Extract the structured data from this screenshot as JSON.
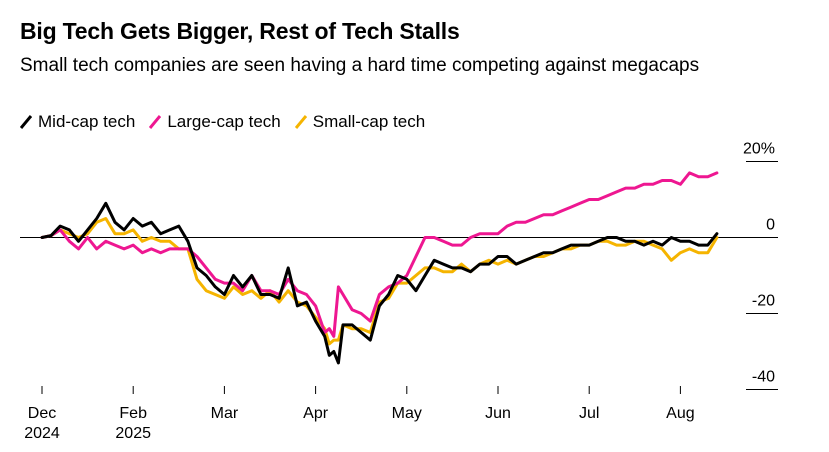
{
  "title": "Big Tech Gets Bigger, Rest of Tech Stalls",
  "subtitle": "Small tech companies are seen having a hard time competing against megacaps",
  "colors": {
    "mid": "#000000",
    "large": "#ee1791",
    "small": "#f5b400"
  },
  "chart_data": {
    "type": "line",
    "ylim": [
      -40,
      20
    ],
    "y_ticks": [
      20,
      0,
      -20,
      -40
    ],
    "y_tick_labels": [
      "20%",
      "0",
      "-20",
      "-40"
    ],
    "x_ticks": [
      {
        "month": 0,
        "lines": [
          "Dec",
          "2024"
        ]
      },
      {
        "month": 1,
        "lines": [
          "Feb",
          "2025"
        ]
      },
      {
        "month": 2,
        "lines": [
          "Mar"
        ]
      },
      {
        "month": 3,
        "lines": [
          "Apr"
        ]
      },
      {
        "month": 4,
        "lines": [
          "May"
        ]
      },
      {
        "month": 5,
        "lines": [
          "Jun"
        ]
      },
      {
        "month": 6,
        "lines": [
          "Jul"
        ]
      },
      {
        "month": 7,
        "lines": [
          "Aug"
        ]
      }
    ],
    "x": [
      0,
      0.1,
      0.2,
      0.3,
      0.4,
      0.5,
      0.6,
      0.7,
      0.8,
      0.9,
      1.0,
      1.1,
      1.2,
      1.3,
      1.4,
      1.5,
      1.6,
      1.7,
      1.8,
      1.9,
      2.0,
      2.1,
      2.2,
      2.3,
      2.4,
      2.5,
      2.6,
      2.7,
      2.8,
      2.9,
      3.0,
      3.1,
      3.15,
      3.2,
      3.25,
      3.3,
      3.4,
      3.5,
      3.6,
      3.7,
      3.8,
      3.9,
      4.0,
      4.1,
      4.2,
      4.3,
      4.4,
      4.5,
      4.6,
      4.7,
      4.8,
      4.9,
      5.0,
      5.1,
      5.2,
      5.3,
      5.4,
      5.5,
      5.6,
      5.7,
      5.8,
      5.9,
      6.0,
      6.1,
      6.2,
      6.3,
      6.4,
      6.5,
      6.6,
      6.7,
      6.8,
      6.9,
      7.0,
      7.1,
      7.2,
      7.3,
      7.4
    ],
    "series": [
      {
        "name": "Mid-cap tech",
        "color_key": "mid",
        "values": [
          0,
          0.5,
          3,
          2,
          -1,
          2,
          5,
          9,
          4,
          2,
          5,
          3,
          4,
          1,
          2,
          3,
          -1,
          -8,
          -10,
          -13,
          -15,
          -10,
          -13,
          -10,
          -15,
          -15,
          -16,
          -8,
          -18,
          -17,
          -22,
          -26,
          -31,
          -30,
          -33,
          -23,
          -23,
          -25,
          -27,
          -18,
          -15,
          -10,
          -11,
          -14,
          -10,
          -6,
          -7,
          -8,
          -8,
          -9,
          -7,
          -7,
          -5,
          -5,
          -7,
          -6,
          -5,
          -4,
          -4,
          -3,
          -2,
          -2,
          -2,
          -1,
          0,
          0,
          -1,
          -1,
          -2,
          -1,
          -2,
          0,
          -1,
          -1,
          -2,
          -2,
          1
        ]
      },
      {
        "name": "Large-cap tech",
        "color_key": "large",
        "values": [
          0,
          0.5,
          2,
          -1,
          -3,
          0,
          -3,
          -1,
          -2,
          -3,
          -2,
          -4,
          -3,
          -4,
          -3,
          -3,
          -3,
          -5,
          -8,
          -11,
          -12,
          -12,
          -14,
          -10,
          -14,
          -14,
          -15,
          -11,
          -14,
          -15,
          -18,
          -25,
          -24,
          -26,
          -13,
          -15,
          -19,
          -20,
          -22,
          -15,
          -13,
          -12,
          -10,
          -5,
          0,
          0,
          -1,
          -2,
          -2,
          0,
          1,
          1,
          1,
          3,
          4,
          4,
          5,
          6,
          6,
          7,
          8,
          9,
          10,
          10,
          11,
          12,
          13,
          13,
          14,
          14,
          15,
          15,
          14,
          17,
          16,
          16,
          17
        ]
      },
      {
        "name": "Small-cap tech",
        "color_key": "small",
        "values": [
          0,
          0.5,
          2,
          1,
          0,
          1,
          4,
          5,
          1,
          1,
          2,
          -1,
          0,
          -1,
          -1,
          -3,
          -3,
          -11,
          -14,
          -15,
          -16,
          -13,
          -15,
          -14,
          -16,
          -14,
          -17,
          -14,
          -17,
          -18,
          -21,
          -24,
          -28,
          -27,
          -27,
          -23,
          -24,
          -24,
          -25,
          -17,
          -16,
          -12,
          -12,
          -10,
          -8,
          -8,
          -9,
          -9,
          -7,
          -9,
          -7,
          -6,
          -7,
          -6,
          -7,
          -6,
          -5,
          -5,
          -4,
          -3,
          -3,
          -2,
          -2,
          -1,
          -1,
          -2,
          -2,
          -1,
          -1,
          -2,
          -3,
          -6,
          -4,
          -3,
          -4,
          -4,
          0
        ]
      }
    ]
  }
}
